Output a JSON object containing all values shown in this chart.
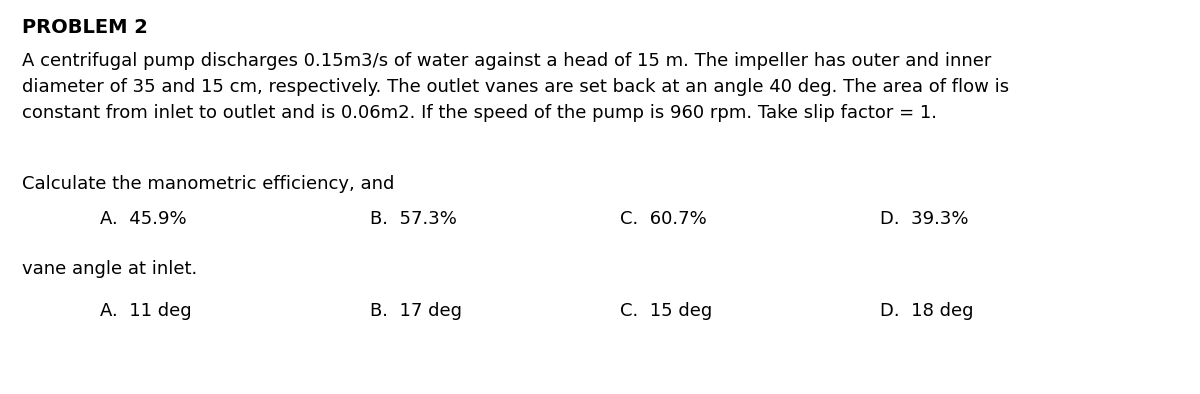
{
  "title": "PROBLEM 2",
  "para_line1": "A centrifugal pump discharges 0.15m3/s of water against a head of 15 m. The impeller has outer and inner",
  "para_line2": "diameter of 35 and 15 cm, respectively. The outlet vanes are set back at an angle 40 deg. The area of flow is",
  "para_line3": "constant from inlet to outlet and is 0.06m2. If the speed of the pump is 960 rpm. Take slip factor = 1.",
  "q1_label": "Calculate the manometric efficiency, and",
  "q1_options": [
    "A.  45.9%",
    "B.  57.3%",
    "C.  60.7%",
    "D.  39.3%"
  ],
  "q2_label": "vane angle at inlet.",
  "q2_options": [
    "A.  11 deg",
    "B.  17 deg",
    "C.  15 deg",
    "D.  18 deg"
  ],
  "bg_color": "#ffffff",
  "text_color": "#000000",
  "title_fontsize": 14,
  "body_fontsize": 13,
  "option_fontsize": 13,
  "label_fontsize": 13
}
